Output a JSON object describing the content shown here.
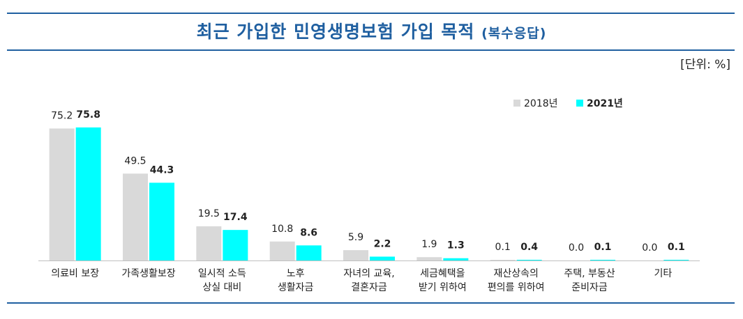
{
  "header": {
    "title": "최근 가입한 민영생명보험 가입 목적",
    "subtitle": "(복수응답)",
    "unit": "[단위: %]"
  },
  "colors": {
    "s2018": "#d9d9d9",
    "s2021": "#00ffff",
    "rule": "#1f5fa0",
    "title": "#1f5fa0"
  },
  "chart_data": {
    "type": "bar",
    "title": "최근 가입한 민영생명보험 가입 목적 (복수응답)",
    "categories": [
      [
        "의료비 보장"
      ],
      [
        "가족생활보장"
      ],
      [
        "일시적 소득",
        "상실 대비"
      ],
      [
        "노후",
        "생활자금"
      ],
      [
        "자녀의 교육,",
        "결혼자금"
      ],
      [
        "세금혜택을",
        "받기 위하여"
      ],
      [
        "재산상속의",
        "편의를 위하여"
      ],
      [
        "주택, 부동산",
        "준비자금"
      ],
      [
        "기타"
      ]
    ],
    "series": [
      {
        "name": "2018년",
        "values": [
          75.2,
          49.5,
          19.5,
          10.8,
          5.9,
          1.9,
          0.1,
          0.0,
          0.0
        ],
        "labels": [
          "75.2",
          "49.5",
          "19.5",
          "10.8",
          "5.9",
          "1.9",
          "0.1",
          "0.0",
          "0.0"
        ]
      },
      {
        "name": "2021년",
        "values": [
          75.8,
          44.3,
          17.4,
          8.6,
          2.2,
          1.3,
          0.4,
          0.1,
          0.1
        ],
        "labels": [
          "75.8",
          "44.3",
          "17.4",
          "8.6",
          "2.2",
          "1.3",
          "0.4",
          "0.1",
          "0.1"
        ]
      }
    ],
    "legend_position": "top-right",
    "grid": false
  }
}
